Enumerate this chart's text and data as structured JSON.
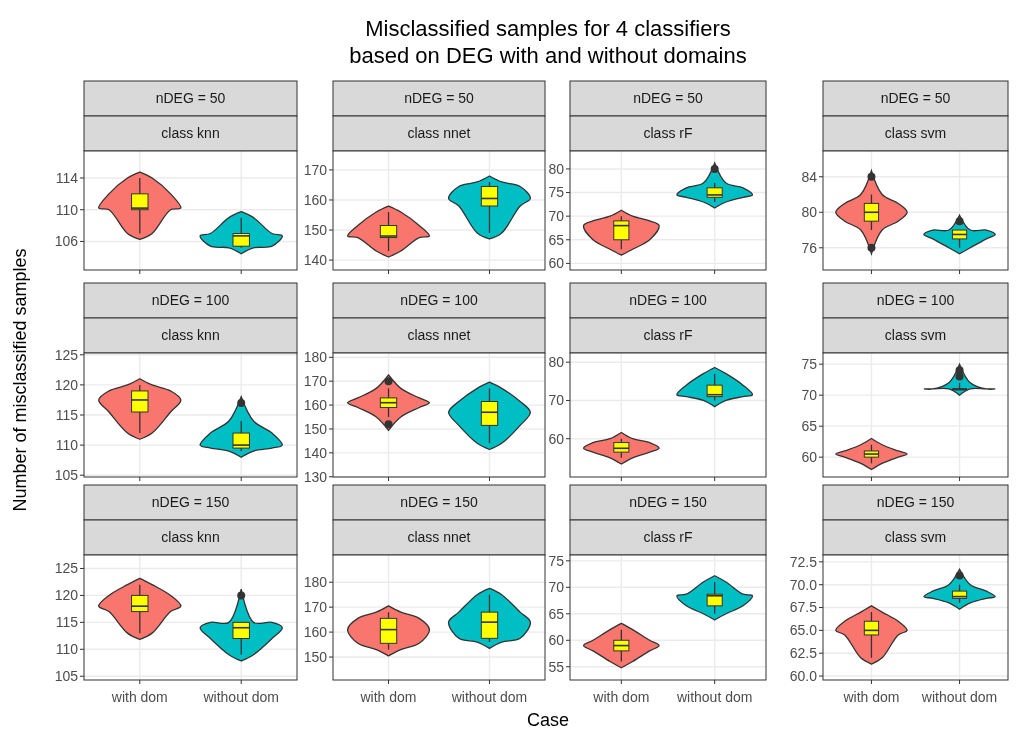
{
  "chart_data": [
    {
      "type": "box",
      "title": "nDEG = 50",
      "subtitle": "class knn",
      "colors": [
        "#ffff00",
        "#ffff00"
      ],
      "boxes": [
        {
          "low": 107,
          "q1": 110,
          "median": 110.2,
          "q3": 112,
          "high": 114
        },
        {
          "low": 105.2,
          "q1": 105.4,
          "median": 106.7,
          "q3": 107,
          "high": 109
        }
      ],
      "ylim": [
        102.4,
        117.4
      ],
      "yticks": [
        106,
        110,
        114
      ],
      "tick_labels": "y",
      "grid": true
    },
    {
      "type": "box",
      "title": "nDEG = 50",
      "subtitle": "class nnet",
      "colors": [
        "#ffff00",
        "#ffff00"
      ],
      "boxes": [
        {
          "low": 143,
          "q1": 147.5,
          "median": 148,
          "q3": 151.5,
          "high": 156
        },
        {
          "low": 149,
          "q1": 158,
          "median": 160.5,
          "q3": 164.5,
          "high": 166
        }
      ],
      "ylim": [
        136.7,
        176.3
      ],
      "yticks": [
        140,
        150,
        160,
        170
      ],
      "tick_labels": "y",
      "grid": true
    },
    {
      "type": "box",
      "title": "nDEG = 50",
      "subtitle": "class rF",
      "colors": [
        "#ffff00",
        "#ffff00"
      ],
      "boxes": [
        {
          "low": 63,
          "q1": 65,
          "median": 68,
          "q3": 69,
          "high": 70
        },
        {
          "low": 73,
          "q1": 74,
          "median": 74.5,
          "q3": 76,
          "high": 77,
          "outliers": [
            80
          ]
        }
      ],
      "ylim": [
        58.6,
        83.8
      ],
      "yticks": [
        60,
        65,
        70,
        75,
        80
      ],
      "tick_labels": "y",
      "grid": true
    },
    {
      "type": "box",
      "title": "nDEG = 50",
      "subtitle": "class svm",
      "colors": [
        "#ffff00",
        "#ffff00"
      ],
      "boxes": [
        {
          "low": 78,
          "q1": 79,
          "median": 80,
          "q3": 81,
          "high": 82,
          "outliers": [
            76,
            84
          ]
        },
        {
          "low": 76,
          "q1": 77,
          "median": 77.5,
          "q3": 78,
          "high": 78,
          "outliers": [
            79
          ]
        }
      ],
      "ylim": [
        73.5,
        86.9
      ],
      "yticks": [
        76,
        80,
        84
      ],
      "tick_labels": "y",
      "grid": true
    },
    {
      "type": "box",
      "title": "nDEG = 100",
      "subtitle": "class knn",
      "colors": [
        "#ffff00",
        "#ffff00"
      ],
      "boxes": [
        {
          "low": 112,
          "q1": 115.5,
          "median": 117.5,
          "q3": 119,
          "high": 120
        },
        {
          "low": 109,
          "q1": 109.5,
          "median": 110,
          "q3": 112,
          "high": 114,
          "outliers": [
            117
          ]
        }
      ],
      "ylim": [
        104.7,
        125.3
      ],
      "yticks": [
        105,
        110,
        115,
        120,
        125
      ],
      "tick_labels": "y",
      "grid": true
    },
    {
      "type": "box",
      "title": "nDEG = 100",
      "subtitle": "class nnet",
      "colors": [
        "#ffff00",
        "#ffff00"
      ],
      "boxes": [
        {
          "low": 155,
          "q1": 159,
          "median": 161,
          "q3": 163,
          "high": 167,
          "outliers": [
            152,
            170
          ]
        },
        {
          "low": 144,
          "q1": 151.5,
          "median": 157,
          "q3": 161.5,
          "high": 167
        }
      ],
      "ylim": [
        129.9,
        181.8
      ],
      "yticks": [
        130,
        140,
        150,
        160,
        170,
        180
      ],
      "tick_labels": "y",
      "grid": true
    },
    {
      "type": "box",
      "title": "nDEG = 100",
      "subtitle": "class rF",
      "colors": [
        "#ffff00",
        "#ffff00"
      ],
      "boxes": [
        {
          "low": 55,
          "q1": 56.5,
          "median": 57.5,
          "q3": 59,
          "high": 60
        },
        {
          "low": 70,
          "q1": 71,
          "median": 71.5,
          "q3": 74,
          "high": 77
        }
      ],
      "ylim": [
        50,
        82.4
      ],
      "yticks": [
        60,
        70,
        80
      ],
      "tick_labels": "y",
      "grid": true
    },
    {
      "type": "box",
      "title": "nDEG = 100",
      "subtitle": "class svm",
      "colors": [
        "#ffff00",
        "#ffff00"
      ],
      "boxes": [
        {
          "low": 59,
          "q1": 60,
          "median": 60.5,
          "q3": 61,
          "high": 62
        },
        {
          "low": 71,
          "q1": 71,
          "median": 71,
          "q3": 71,
          "high": 72,
          "outliers": [
            73,
            74
          ]
        }
      ],
      "ylim": [
        56.8,
        76.8
      ],
      "yticks": [
        60,
        65,
        70,
        75
      ],
      "tick_labels": "y",
      "grid": true
    },
    {
      "type": "box",
      "title": "nDEG = 150",
      "subtitle": "class knn",
      "categories": [
        "with dom",
        "without dom"
      ],
      "colors": [
        "#ffff00",
        "#ffff00"
      ],
      "boxes": [
        {
          "low": 113,
          "q1": 117,
          "median": 118,
          "q3": 120,
          "high": 122
        },
        {
          "low": 109,
          "q1": 112,
          "median": 114,
          "q3": 115,
          "high": 115,
          "outliers": [
            120
          ]
        }
      ],
      "ylim": [
        104.3,
        127.5
      ],
      "yticks": [
        105,
        110,
        115,
        120,
        125
      ],
      "grid": true
    },
    {
      "type": "box",
      "title": "nDEG = 150",
      "subtitle": "class nnet",
      "categories": [
        "with dom",
        "without dom"
      ],
      "colors": [
        "#ffff00",
        "#ffff00"
      ],
      "boxes": [
        {
          "low": 153,
          "q1": 155.5,
          "median": 161,
          "q3": 165.5,
          "high": 168
        },
        {
          "low": 156,
          "q1": 157.5,
          "median": 164,
          "q3": 168,
          "high": 175
        }
      ],
      "ylim": [
        140.8,
        190.9
      ],
      "yticks": [
        150,
        160,
        170,
        180
      ],
      "grid": true
    },
    {
      "type": "box",
      "title": "nDEG = 150",
      "subtitle": "class rF",
      "categories": [
        "with dom",
        "without dom"
      ],
      "colors": [
        "#ffff00",
        "#ffff00"
      ],
      "boxes": [
        {
          "low": 56,
          "q1": 58,
          "median": 59,
          "q3": 60,
          "high": 62
        },
        {
          "low": 65,
          "q1": 66.5,
          "median": 68.4,
          "q3": 68.7,
          "high": 71
        }
      ],
      "ylim": [
        52.5,
        76.1
      ],
      "yticks": [
        55,
        60,
        65,
        70,
        75
      ],
      "grid": true
    },
    {
      "type": "box",
      "title": "nDEG = 150",
      "subtitle": "class svm",
      "categories": [
        "with dom",
        "without dom"
      ],
      "colors": [
        "#ffff00",
        "#ffff00"
      ],
      "boxes": [
        {
          "low": 62,
          "q1": 64.5,
          "median": 65,
          "q3": 66,
          "high": 67
        },
        {
          "low": 68,
          "q1": 68.5,
          "median": 68.7,
          "q3": 69.3,
          "high": 70,
          "outliers": [
            71
          ]
        }
      ],
      "ylim": [
        59.57,
        73.25
      ],
      "yticks": [
        {
          "value": 60,
          "label": "60.0"
        },
        62.5,
        {
          "value": 65,
          "label": "65.0"
        },
        67.5,
        {
          "value": 70,
          "label": "70.0"
        },
        72.5
      ],
      "grid": true
    },
    {
      "type": "other",
      "title": "Misclassified samples for 4 classifiers\nbased on DEG with and without domains",
      "xlabel": "Case",
      "ylabel": "Number of misclassified samples"
    }
  ]
}
